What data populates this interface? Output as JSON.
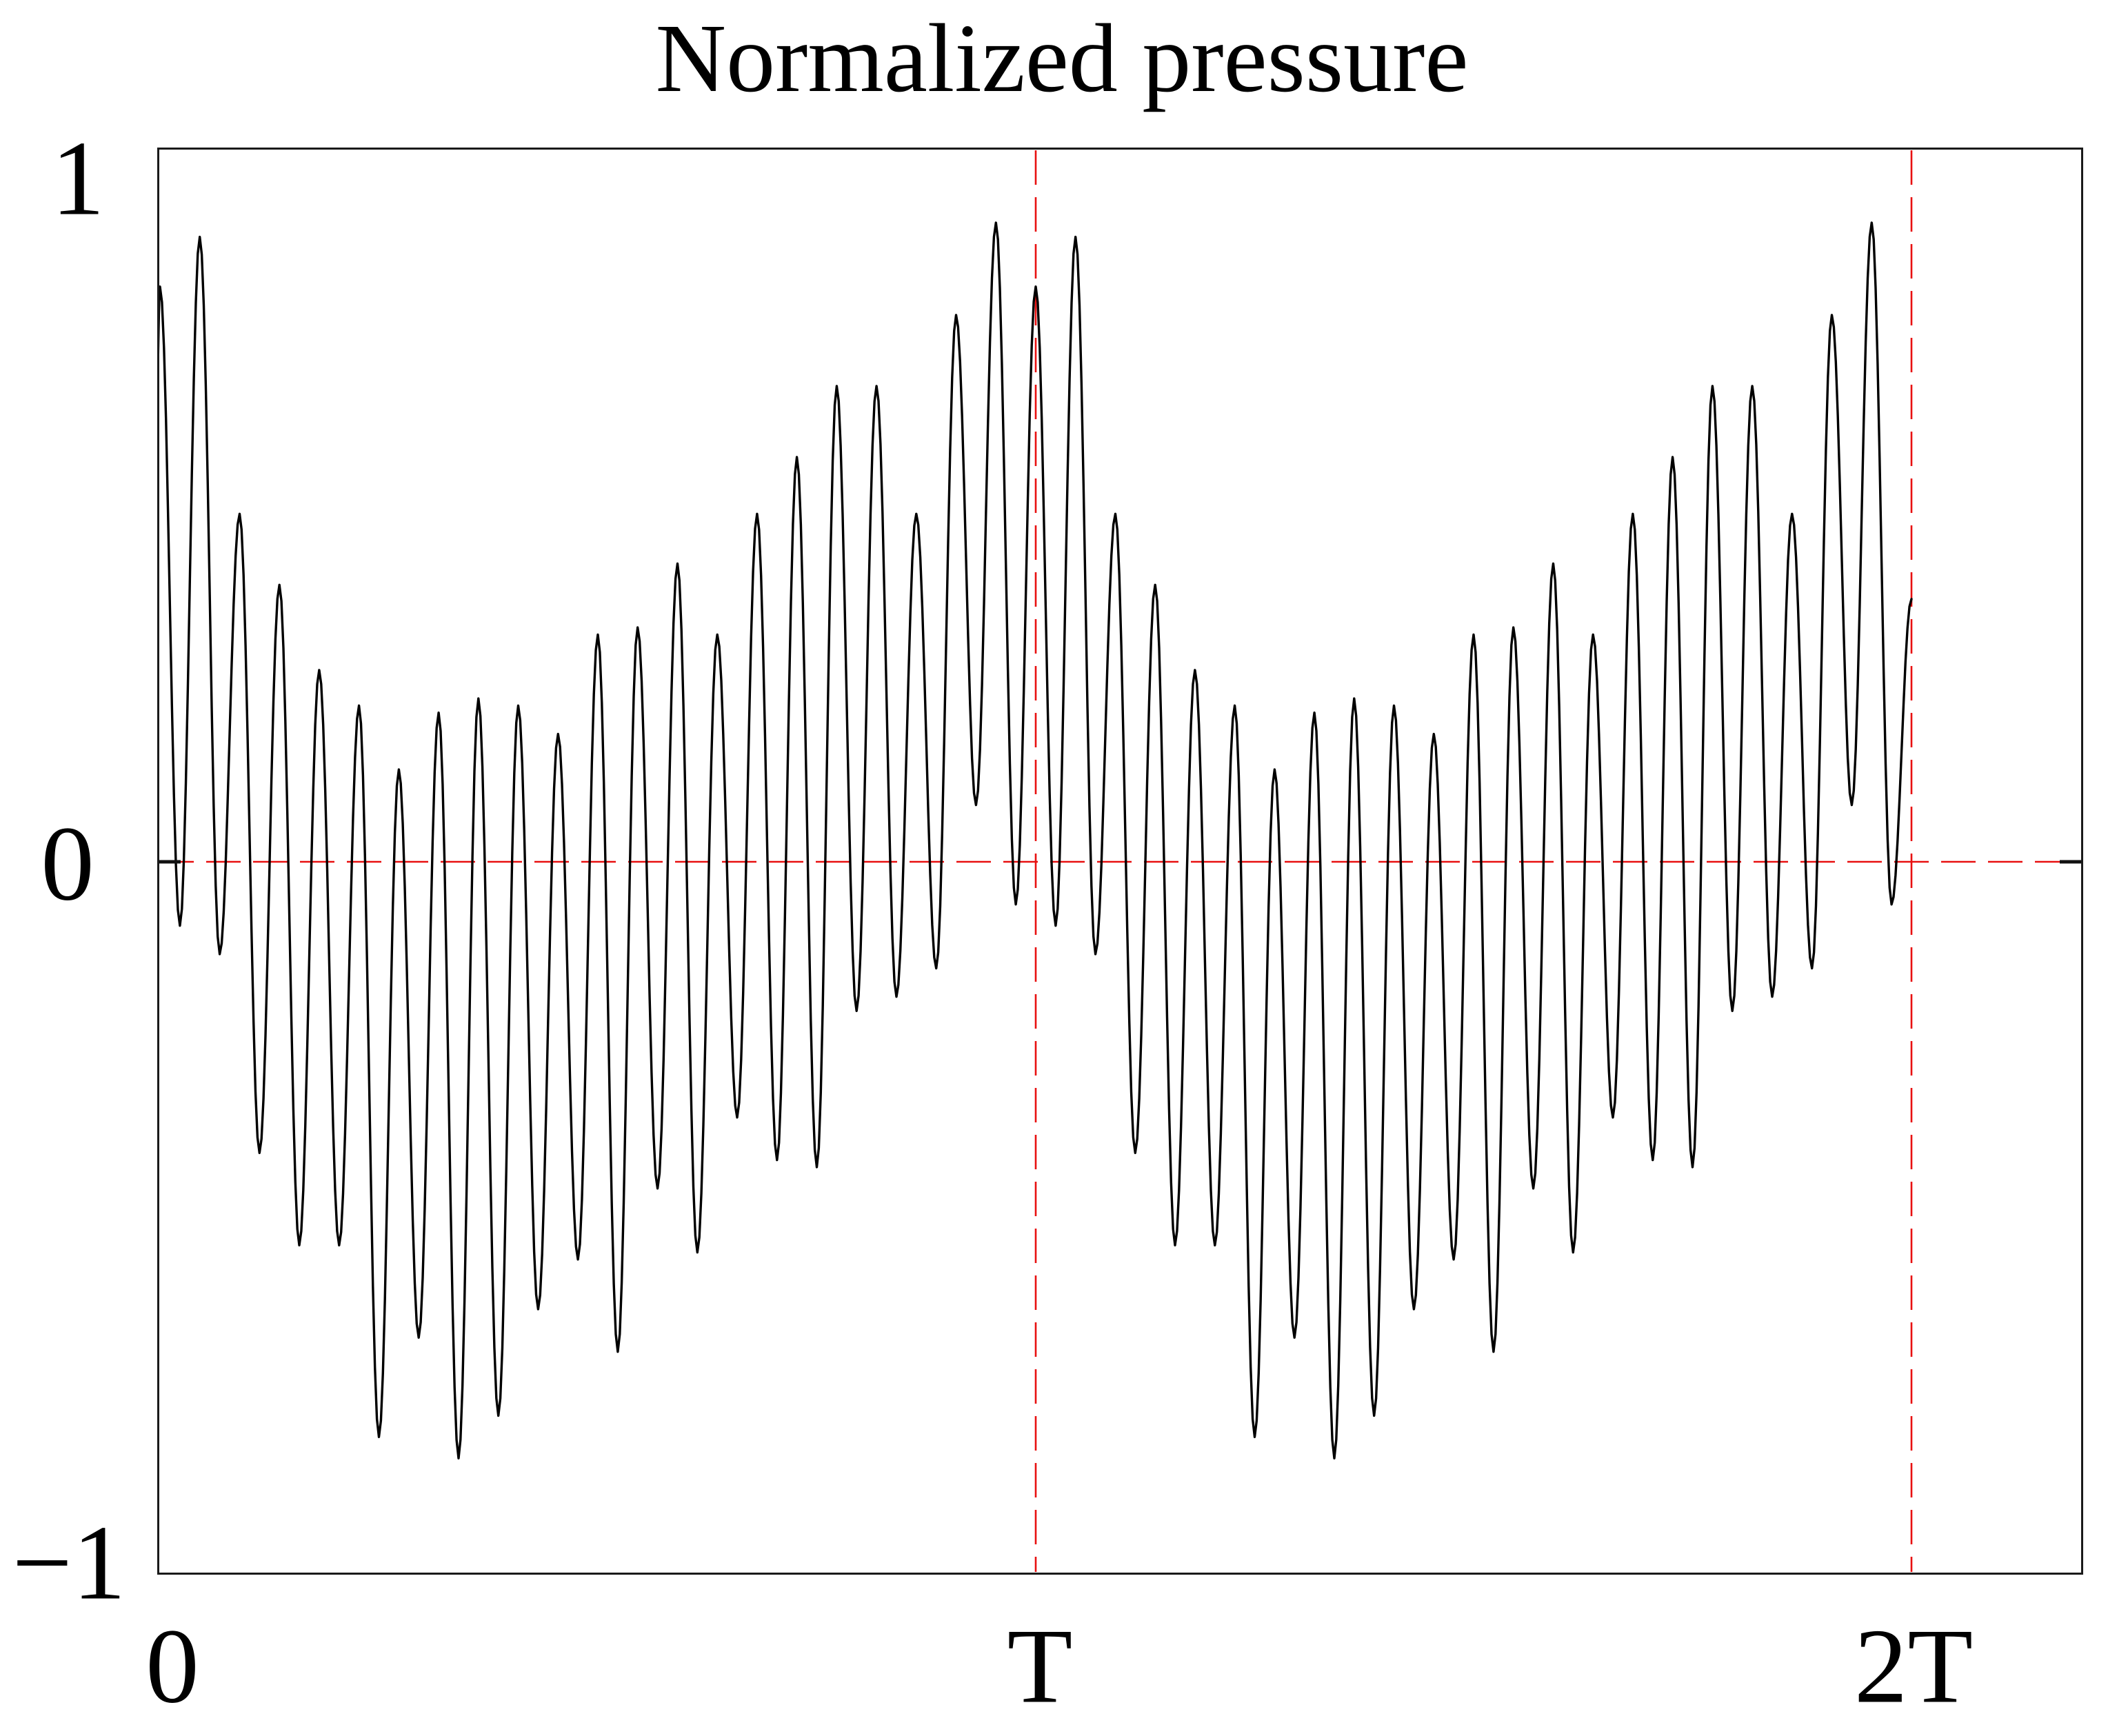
{
  "title": "Normalized pressure",
  "axes": {
    "y_ticks": [
      {
        "label": "1",
        "value": 1
      },
      {
        "label": "0",
        "value": 0
      },
      {
        "label": "−1",
        "value": -1
      }
    ],
    "x_ticks": [
      {
        "label": "0",
        "value": 0
      },
      {
        "label": "T",
        "value": 1
      },
      {
        "label": "2T",
        "value": 2
      }
    ]
  },
  "chart_data": {
    "type": "line",
    "title": "Normalized pressure",
    "description": "Normalized acoustic pressure waveform of a periodic tone plotted over two periods T. About 22 fast oscillations per period ride on a slowly varying envelope: peaks near 0.9 around t=0, T and 2T, decaying to ~0.13 mid-period, while troughs deepen to ~-0.84 around t=0.35T. Curve repeats identically in the second period and stops at t=2T.",
    "ylim": [
      -1,
      1
    ],
    "x_range_periods": [
      0,
      2
    ],
    "periods_shown": 2,
    "carrier_cycles_per_period": 22,
    "grid": "off",
    "legend": "none",
    "series_color": "#000000",
    "guide_color": "#e81010",
    "guides": {
      "horizontal_y": 0,
      "vertical_x_periods": [
        1,
        2
      ],
      "style": "dashed red"
    },
    "axis_tick_marks_at_y0": [
      "left",
      "right"
    ],
    "period_extremes_x_rule": "extreme k (k=0..43) sits at t = k/44 of one period; even k are local maxima, odd k are local minima",
    "period_extremes_y": [
      0.81,
      -0.09,
      0.88,
      -0.13,
      0.49,
      -0.41,
      0.39,
      -0.54,
      0.27,
      -0.54,
      0.22,
      -0.81,
      0.13,
      -0.67,
      0.21,
      -0.84,
      0.23,
      -0.78,
      0.22,
      -0.63,
      0.18,
      -0.56,
      0.32,
      -0.69,
      0.33,
      -0.46,
      0.42,
      -0.55,
      0.32,
      -0.36,
      0.49,
      -0.42,
      0.57,
      -0.43,
      0.67,
      -0.21,
      0.67,
      -0.19,
      0.49,
      -0.15,
      0.77,
      0.08,
      0.9,
      -0.06
    ],
    "start_point": [
      -0.004,
      0.64
    ],
    "end_point": [
      2.0,
      0.37
    ],
    "interpolation": "half-cosine between consecutive extremes"
  }
}
